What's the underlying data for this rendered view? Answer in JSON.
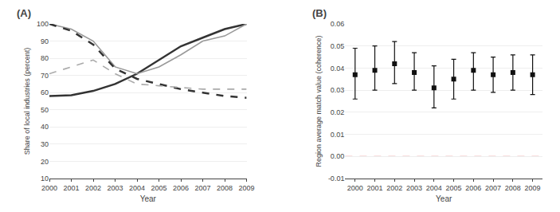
{
  "chart_data": [
    {
      "type": "line",
      "title": "(A)",
      "x": [
        2000,
        2001,
        2002,
        2003,
        2004,
        2005,
        2006,
        2007,
        2008,
        2009
      ],
      "xlabel": "Year",
      "ylabel": "Share of local industries (percent)",
      "xlim": [
        2000,
        2009
      ],
      "xticks": [
        2000,
        2001,
        2002,
        2003,
        2004,
        2005,
        2006,
        2007,
        2008,
        2009
      ],
      "ylim": [
        10,
        100
      ],
      "yticks": [
        10,
        20,
        30,
        40,
        50,
        60,
        70,
        80,
        90,
        100
      ],
      "grid": "y",
      "series": [
        {
          "color": "#333333",
          "line_style": "solid",
          "values": [
            58,
            58.5,
            61,
            65,
            71,
            79,
            87,
            92,
            97,
            100
          ]
        },
        {
          "color": "#999999",
          "line_style": "solid",
          "values": [
            100,
            97,
            90,
            75,
            71,
            75,
            82,
            90,
            93,
            100
          ]
        },
        {
          "color": "#333333",
          "line_style": "dashed",
          "values": [
            100,
            96,
            88,
            74,
            68,
            65,
            62,
            60,
            58,
            57
          ]
        },
        {
          "color": "#aaaaaa",
          "line_style": "dashed",
          "values": [
            71,
            75,
            79,
            71,
            65,
            64,
            63,
            62,
            62,
            62
          ]
        }
      ]
    },
    {
      "type": "scatter",
      "title": "(B)",
      "x": [
        2000,
        2001,
        2002,
        2003,
        2004,
        2005,
        2006,
        2007,
        2008,
        2009
      ],
      "xlabel": "Year",
      "ylabel": "Region average match value (coherence)",
      "xlim": [
        1999.5,
        2009.5
      ],
      "xticks": [
        2000,
        2001,
        2002,
        2003,
        2004,
        2005,
        2006,
        2007,
        2008,
        2009
      ],
      "ylim": [
        -0.01,
        0.06
      ],
      "yticks": [
        -0.01,
        {
          "value": 0.0,
          "label": "0.00"
        },
        0.01,
        0.02,
        0.03,
        0.04,
        0.05,
        0.06
      ],
      "grid": "y",
      "series": [
        {
          "color": "#111111",
          "marker": "square",
          "values": [
            0.037,
            0.039,
            0.042,
            0.038,
            0.031,
            0.035,
            0.039,
            0.037,
            0.038,
            0.037
          ],
          "err_low": [
            0.011,
            0.009,
            0.009,
            0.008,
            0.009,
            0.009,
            0.009,
            0.008,
            0.008,
            0.009
          ],
          "err_high": [
            0.012,
            0.011,
            0.01,
            0.009,
            0.01,
            0.009,
            0.008,
            0.008,
            0.008,
            0.009
          ]
        }
      ],
      "ref_line": {
        "y": 0.0,
        "color": "#e88080",
        "line_style": "dashed"
      }
    }
  ]
}
